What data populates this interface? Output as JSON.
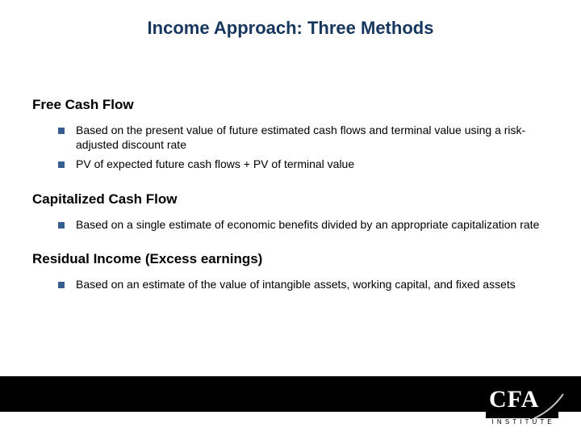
{
  "title": "Income Approach: Three Methods",
  "title_fontsize": 22,
  "title_color": "#16365d",
  "body_text_color": "#000000",
  "heading_fontsize": 17,
  "bullet_fontsize": 14,
  "bullet_marker_color": "#355e8e",
  "bullet_marker_size": 8,
  "background_color": "#ffffff",
  "footer_bar_color": "#000000",
  "sections": [
    {
      "heading": "Free Cash Flow",
      "items": [
        "Based on the present value of future estimated cash flows and terminal value using a risk-adjusted discount rate",
        "PV of expected future cash flows + PV of terminal value"
      ]
    },
    {
      "heading": "Capitalized Cash Flow",
      "items": [
        "Based on a single estimate of economic benefits divided by an appropriate capitalization rate"
      ]
    },
    {
      "heading": "Residual Income (Excess earnings)",
      "items": [
        "Based on an estimate of the value of intangible assets, working capital, and fixed assets"
      ]
    }
  ],
  "logo": {
    "main_text": "CFA",
    "main_fontsize": 30,
    "sub_text": "I N S T I T U T E",
    "bg_color": "#000000",
    "text_color": "#ffffff"
  }
}
